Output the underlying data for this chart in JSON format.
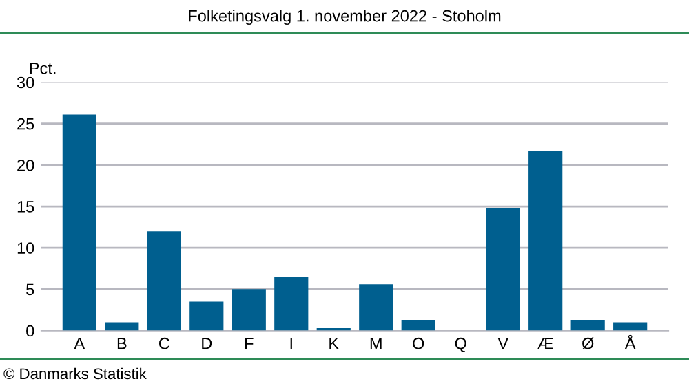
{
  "chart_data": {
    "type": "bar",
    "title": "Folketingsvalg 1. november 2022 - Stoholm",
    "ylabel": "Pct.",
    "categories": [
      "A",
      "B",
      "C",
      "D",
      "F",
      "I",
      "K",
      "M",
      "O",
      "Q",
      "V",
      "Æ",
      "Ø",
      "Å"
    ],
    "values": [
      26.1,
      1.0,
      12.0,
      3.5,
      5.0,
      6.5,
      0.3,
      5.6,
      1.3,
      0,
      14.8,
      21.7,
      1.3,
      1.0
    ],
    "color": "#005f8f",
    "ylim": [
      0,
      30
    ],
    "yticks": [
      0,
      5,
      10,
      15,
      20,
      25,
      30
    ],
    "grid": "y",
    "annotations": [
      "© Danmarks Statistik"
    ]
  }
}
